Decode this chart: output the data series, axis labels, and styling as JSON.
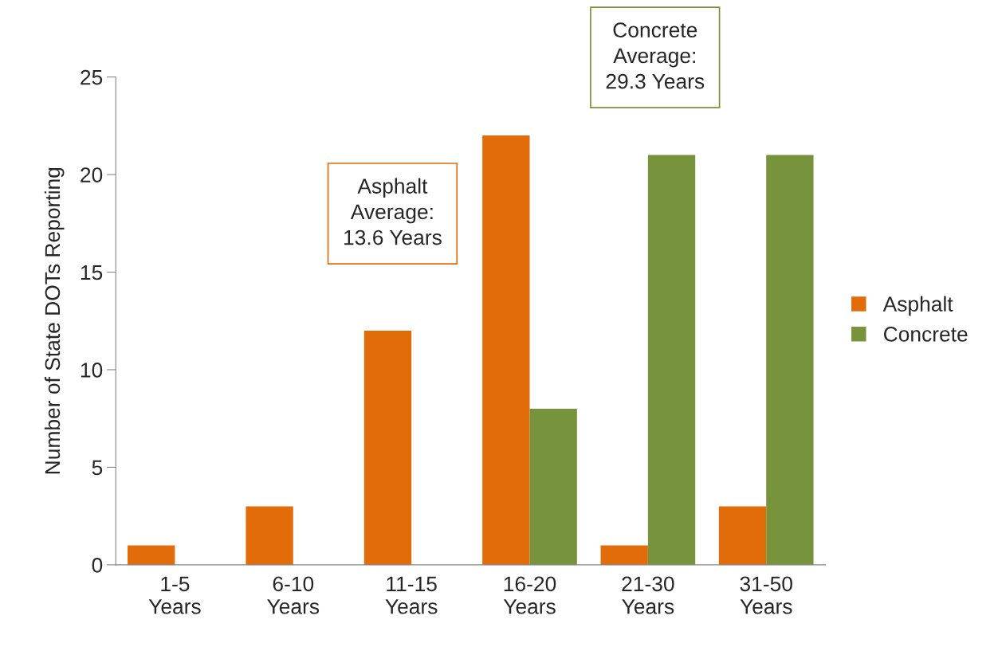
{
  "chart_data": {
    "type": "bar",
    "categories": [
      "1-5\nYears",
      "6-10\nYears",
      "11-15\nYears",
      "16-20\nYears",
      "21-30\nYears",
      "31-50\nYears"
    ],
    "series": [
      {
        "name": "Asphalt",
        "color": "#e36c0a",
        "values": [
          1,
          3,
          12,
          22,
          1,
          3
        ]
      },
      {
        "name": "Concrete",
        "color": "#77933c",
        "values": [
          null,
          null,
          null,
          8,
          21,
          21
        ]
      }
    ],
    "ylabel": "Number of State DOTs Reporting",
    "ylim": [
      0,
      25
    ],
    "yticks": [
      0,
      5,
      10,
      15,
      20,
      25
    ],
    "annotations": [
      "Asphalt\nAverage:\n13.6 Years",
      "Concrete\nAverage:\n29.3 Years"
    ],
    "grid": false,
    "legend": "right"
  }
}
